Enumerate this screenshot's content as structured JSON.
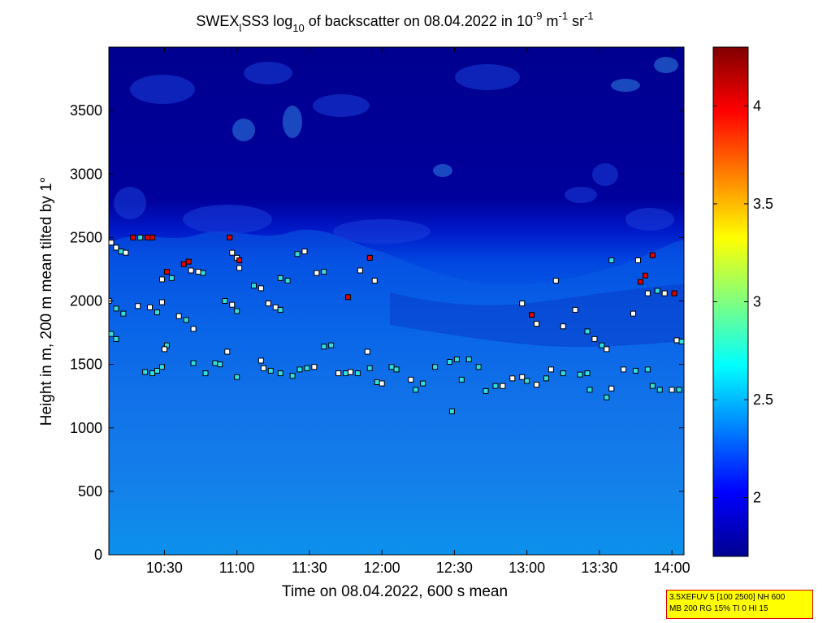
{
  "chart_data": {
    "type": "heatmap",
    "title_parts": {
      "a": "SWEX",
      "sub1": "l",
      "b": "SS3 log",
      "sub2": "10",
      "c": " of backscatter on 08.04.2022 in 10",
      "sup1": "-9",
      "d": " m",
      "sup2": "-1",
      "e": " sr",
      "sup3": "-1"
    },
    "xlabel": "Time on 08.04.2022, 600 s mean",
    "ylabel": "Height in m, 200 m mean tilted by 1°",
    "x_range": [
      "10:07",
      "14:05"
    ],
    "x_ticks": [
      "10:30",
      "11:00",
      "11:30",
      "12:00",
      "12:30",
      "13:00",
      "13:30",
      "14:00"
    ],
    "ylim": [
      0,
      4000
    ],
    "y_ticks": [
      "0",
      "500",
      "1000",
      "1500",
      "2000",
      "2500",
      "3000",
      "3500"
    ],
    "colorbar": {
      "range": [
        1.7,
        4.3
      ],
      "ticks": [
        "2",
        "2.5",
        "3",
        "3.5",
        "4"
      ],
      "colormap": "jet"
    },
    "cloud_markers_note": "squares mark detected layers, colored by value",
    "markers": [
      {
        "t": "10:08",
        "h": 2460,
        "c": "w"
      },
      {
        "t": "10:10",
        "h": 2420,
        "c": "w"
      },
      {
        "t": "10:12",
        "h": 2390,
        "c": "c"
      },
      {
        "t": "10:14",
        "h": 2380,
        "c": "w"
      },
      {
        "t": "10:17",
        "h": 2500,
        "c": "r"
      },
      {
        "t": "10:20",
        "h": 2500,
        "c": "c"
      },
      {
        "t": "10:23",
        "h": 2500,
        "c": "r"
      },
      {
        "t": "10:25",
        "h": 2500,
        "c": "r"
      },
      {
        "t": "10:31",
        "h": 2230,
        "c": "r"
      },
      {
        "t": "10:29",
        "h": 2170,
        "c": "w"
      },
      {
        "t": "10:33",
        "h": 2180,
        "c": "c"
      },
      {
        "t": "10:38",
        "h": 2290,
        "c": "r"
      },
      {
        "t": "10:40",
        "h": 2310,
        "c": "r"
      },
      {
        "t": "10:41",
        "h": 2240,
        "c": "w"
      },
      {
        "t": "10:44",
        "h": 2230,
        "c": "w"
      },
      {
        "t": "10:46",
        "h": 2220,
        "c": "c"
      },
      {
        "t": "10:57",
        "h": 2500,
        "c": "r"
      },
      {
        "t": "10:58",
        "h": 2380,
        "c": "w"
      },
      {
        "t": "11:00",
        "h": 2340,
        "c": "w"
      },
      {
        "t": "11:01",
        "h": 2320,
        "c": "r"
      },
      {
        "t": "11:01",
        "h": 2260,
        "c": "w"
      },
      {
        "t": "11:07",
        "h": 2120,
        "c": "c"
      },
      {
        "t": "11:10",
        "h": 2100,
        "c": "w"
      },
      {
        "t": "11:18",
        "h": 2180,
        "c": "c"
      },
      {
        "t": "11:21",
        "h": 2160,
        "c": "c"
      },
      {
        "t": "11:25",
        "h": 2370,
        "c": "c"
      },
      {
        "t": "11:28",
        "h": 2390,
        "c": "w"
      },
      {
        "t": "11:33",
        "h": 2220,
        "c": "w"
      },
      {
        "t": "11:36",
        "h": 2230,
        "c": "c"
      },
      {
        "t": "11:46",
        "h": 2030,
        "c": "r"
      },
      {
        "t": "11:51",
        "h": 2240,
        "c": "w"
      },
      {
        "t": "11:55",
        "h": 2340,
        "c": "r"
      },
      {
        "t": "11:57",
        "h": 2160,
        "c": "w"
      },
      {
        "t": "10:07",
        "h": 2000,
        "c": "w"
      },
      {
        "t": "10:10",
        "h": 1940,
        "c": "c"
      },
      {
        "t": "10:13",
        "h": 1900,
        "c": "c"
      },
      {
        "t": "10:19",
        "h": 1960,
        "c": "w"
      },
      {
        "t": "10:24",
        "h": 1950,
        "c": "w"
      },
      {
        "t": "10:27",
        "h": 1910,
        "c": "c"
      },
      {
        "t": "10:29",
        "h": 1990,
        "c": "w"
      },
      {
        "t": "10:36",
        "h": 1880,
        "c": "w"
      },
      {
        "t": "10:39",
        "h": 1850,
        "c": "c"
      },
      {
        "t": "10:42",
        "h": 1780,
        "c": "w"
      },
      {
        "t": "10:55",
        "h": 2000,
        "c": "c"
      },
      {
        "t": "10:58",
        "h": 1970,
        "c": "w"
      },
      {
        "t": "11:00",
        "h": 1920,
        "c": "c"
      },
      {
        "t": "11:13",
        "h": 1980,
        "c": "w"
      },
      {
        "t": "11:16",
        "h": 1950,
        "c": "w"
      },
      {
        "t": "11:18",
        "h": 1930,
        "c": "c"
      },
      {
        "t": "10:08",
        "h": 1740,
        "c": "c"
      },
      {
        "t": "10:10",
        "h": 1700,
        "c": "c"
      },
      {
        "t": "10:31",
        "h": 1650,
        "c": "c"
      },
      {
        "t": "10:30",
        "h": 1620,
        "c": "w"
      },
      {
        "t": "10:56",
        "h": 1600,
        "c": "w"
      },
      {
        "t": "11:36",
        "h": 1640,
        "c": "c"
      },
      {
        "t": "11:39",
        "h": 1650,
        "c": "c"
      },
      {
        "t": "11:54",
        "h": 1600,
        "c": "w"
      },
      {
        "t": "10:22",
        "h": 1440,
        "c": "c"
      },
      {
        "t": "10:25",
        "h": 1430,
        "c": "c"
      },
      {
        "t": "10:27",
        "h": 1450,
        "c": "c"
      },
      {
        "t": "10:29",
        "h": 1480,
        "c": "c"
      },
      {
        "t": "10:42",
        "h": 1510,
        "c": "c"
      },
      {
        "t": "10:47",
        "h": 1430,
        "c": "c"
      },
      {
        "t": "10:51",
        "h": 1510,
        "c": "c"
      },
      {
        "t": "10:53",
        "h": 1500,
        "c": "c"
      },
      {
        "t": "11:00",
        "h": 1400,
        "c": "c"
      },
      {
        "t": "11:10",
        "h": 1530,
        "c": "w"
      },
      {
        "t": "11:11",
        "h": 1470,
        "c": "w"
      },
      {
        "t": "11:14",
        "h": 1450,
        "c": "c"
      },
      {
        "t": "11:18",
        "h": 1430,
        "c": "c"
      },
      {
        "t": "11:23",
        "h": 1410,
        "c": "c"
      },
      {
        "t": "11:26",
        "h": 1460,
        "c": "c"
      },
      {
        "t": "11:29",
        "h": 1470,
        "c": "c"
      },
      {
        "t": "11:32",
        "h": 1480,
        "c": "w"
      },
      {
        "t": "11:42",
        "h": 1430,
        "c": "w"
      },
      {
        "t": "11:45",
        "h": 1430,
        "c": "c"
      },
      {
        "t": "11:47",
        "h": 1440,
        "c": "w"
      },
      {
        "t": "11:50",
        "h": 1430,
        "c": "c"
      },
      {
        "t": "11:55",
        "h": 1470,
        "c": "c"
      },
      {
        "t": "11:58",
        "h": 1360,
        "c": "c"
      },
      {
        "t": "12:00",
        "h": 1350,
        "c": "w"
      },
      {
        "t": "12:04",
        "h": 1480,
        "c": "c"
      },
      {
        "t": "12:06",
        "h": 1460,
        "c": "c"
      },
      {
        "t": "12:12",
        "h": 1380,
        "c": "w"
      },
      {
        "t": "12:14",
        "h": 1300,
        "c": "c"
      },
      {
        "t": "12:17",
        "h": 1350,
        "c": "c"
      },
      {
        "t": "12:22",
        "h": 1480,
        "c": "c"
      },
      {
        "t": "12:28",
        "h": 1520,
        "c": "c"
      },
      {
        "t": "12:31",
        "h": 1540,
        "c": "c"
      },
      {
        "t": "12:33",
        "h": 1380,
        "c": "c"
      },
      {
        "t": "12:36",
        "h": 1540,
        "c": "c"
      },
      {
        "t": "12:29",
        "h": 1130,
        "c": "c"
      },
      {
        "t": "12:40",
        "h": 1480,
        "c": "c"
      },
      {
        "t": "12:43",
        "h": 1290,
        "c": "c"
      },
      {
        "t": "12:47",
        "h": 1330,
        "c": "c"
      },
      {
        "t": "12:50",
        "h": 1330,
        "c": "w"
      },
      {
        "t": "12:54",
        "h": 1390,
        "c": "w"
      },
      {
        "t": "12:58",
        "h": 1400,
        "c": "w"
      },
      {
        "t": "13:00",
        "h": 1370,
        "c": "c"
      },
      {
        "t": "13:04",
        "h": 1340,
        "c": "w"
      },
      {
        "t": "13:08",
        "h": 1390,
        "c": "c"
      },
      {
        "t": "13:10",
        "h": 1460,
        "c": "w"
      },
      {
        "t": "13:15",
        "h": 1430,
        "c": "c"
      },
      {
        "t": "13:22",
        "h": 1420,
        "c": "c"
      },
      {
        "t": "13:25",
        "h": 1430,
        "c": "c"
      },
      {
        "t": "13:26",
        "h": 1300,
        "c": "c"
      },
      {
        "t": "13:33",
        "h": 1240,
        "c": "c"
      },
      {
        "t": "13:35",
        "h": 1310,
        "c": "w"
      },
      {
        "t": "13:40",
        "h": 1460,
        "c": "w"
      },
      {
        "t": "13:45",
        "h": 1450,
        "c": "c"
      },
      {
        "t": "13:50",
        "h": 1460,
        "c": "c"
      },
      {
        "t": "13:52",
        "h": 1330,
        "c": "c"
      },
      {
        "t": "13:55",
        "h": 1300,
        "c": "c"
      },
      {
        "t": "14:00",
        "h": 1300,
        "c": "w"
      },
      {
        "t": "14:03",
        "h": 1300,
        "c": "c"
      },
      {
        "t": "12:58",
        "h": 1980,
        "c": "w"
      },
      {
        "t": "13:02",
        "h": 1890,
        "c": "r"
      },
      {
        "t": "13:04",
        "h": 1820,
        "c": "w"
      },
      {
        "t": "13:12",
        "h": 2160,
        "c": "w"
      },
      {
        "t": "13:15",
        "h": 1800,
        "c": "w"
      },
      {
        "t": "13:20",
        "h": 1930,
        "c": "w"
      },
      {
        "t": "13:25",
        "h": 1760,
        "c": "c"
      },
      {
        "t": "13:28",
        "h": 1700,
        "c": "w"
      },
      {
        "t": "13:31",
        "h": 1650,
        "c": "c"
      },
      {
        "t": "13:33",
        "h": 1620,
        "c": "w"
      },
      {
        "t": "13:35",
        "h": 2320,
        "c": "c"
      },
      {
        "t": "13:44",
        "h": 1900,
        "c": "w"
      },
      {
        "t": "13:46",
        "h": 2320,
        "c": "w"
      },
      {
        "t": "13:47",
        "h": 2150,
        "c": "r"
      },
      {
        "t": "13:49",
        "h": 2200,
        "c": "r"
      },
      {
        "t": "13:50",
        "h": 2060,
        "c": "w"
      },
      {
        "t": "13:52",
        "h": 2360,
        "c": "r"
      },
      {
        "t": "13:54",
        "h": 2080,
        "c": "c"
      },
      {
        "t": "13:57",
        "h": 2060,
        "c": "w"
      },
      {
        "t": "14:01",
        "h": 2060,
        "c": "r"
      },
      {
        "t": "14:02",
        "h": 1690,
        "c": "w"
      },
      {
        "t": "14:04",
        "h": 1680,
        "c": "c"
      }
    ]
  },
  "info_box": {
    "line1": "3.5XEFUV 5 [100 2500] NH 600",
    "line2": "MB 200 RG 15% TI 0 HI 15"
  }
}
